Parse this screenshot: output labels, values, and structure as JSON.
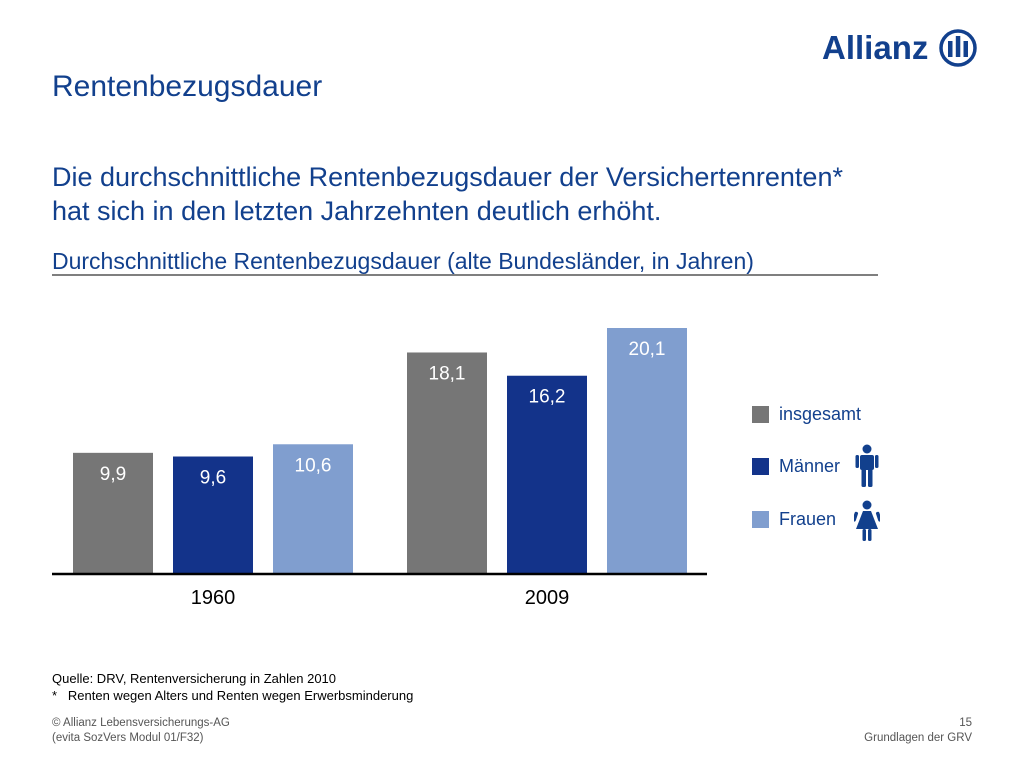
{
  "brand": {
    "name": "Allianz",
    "color": "#12408d"
  },
  "slide": {
    "title": "Rentenbezugsdauer",
    "headline_line1": "Die durchschnittliche Rentenbezugsdauer der Versichertenrenten*",
    "headline_line2": "hat sich in den letzten Jahrzehnten deutlich erhöht."
  },
  "chart_data": {
    "type": "bar",
    "title": "Durchschnittliche Rentenbezugsdauer (alte Bundesländer, in Jahren)",
    "categories": [
      "1960",
      "2009"
    ],
    "series": [
      {
        "name": "insgesamt",
        "color": "#767676",
        "values": [
          9.9,
          18.1
        ],
        "labels": [
          "9,9",
          "18,1"
        ]
      },
      {
        "name": "Männer",
        "color": "#13338a",
        "values": [
          9.6,
          16.2
        ],
        "labels": [
          "9,6",
          "16,2"
        ]
      },
      {
        "name": "Frauen",
        "color": "#809ecf",
        "values": [
          10.6,
          20.1
        ],
        "labels": [
          "10,6",
          "20,1"
        ]
      }
    ],
    "ylim": [
      0,
      20.1
    ],
    "grid": false,
    "legend": "right"
  },
  "legend_icons": {
    "men": "man-icon",
    "women": "woman-icon"
  },
  "notes": {
    "source": "Quelle: DRV, Rentenversicherung in Zahlen 2010",
    "footnote": "*   Renten wegen Alters und Renten wegen Erwerbsminderung"
  },
  "footer": {
    "copyright": "© Allianz Lebensversicherungs-AG",
    "module": "(evita SozVers Modul 01/F32)",
    "page": "15",
    "section": "Grundlagen der GRV"
  }
}
